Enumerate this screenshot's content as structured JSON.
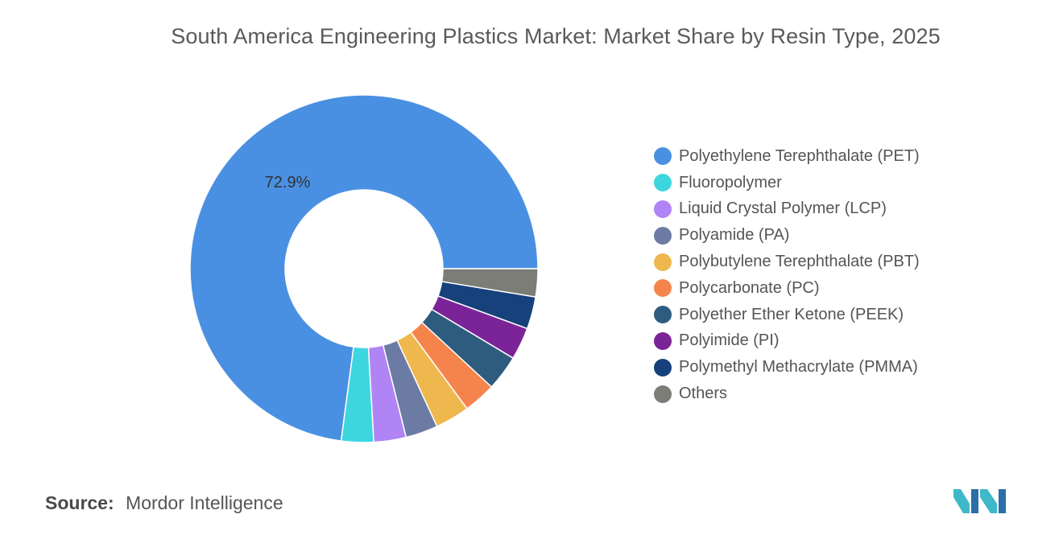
{
  "title": "South America Engineering Plastics Market: Market Share by Resin Type, 2025",
  "source": {
    "label": "Source:",
    "value": "Mordor Intelligence"
  },
  "chart_data": {
    "type": "pie",
    "variant": "donut",
    "title": "South America Engineering Plastics Market: Market Share by Resin Type, 2025",
    "legend_position": "right",
    "series": [
      {
        "name": "Polyethylene Terephthalate (PET)",
        "value": 72.9,
        "label": "72.9%",
        "color": "#4A90E2"
      },
      {
        "name": "Fluoropolymer",
        "value": 3.0,
        "color": "#3DD6DE"
      },
      {
        "name": "Liquid Crystal Polymer (LCP)",
        "value": 3.0,
        "color": "#B084F5"
      },
      {
        "name": "Polyamide (PA)",
        "value": 3.0,
        "color": "#6B7BA4"
      },
      {
        "name": "Polybutylene Terephthalate (PBT)",
        "value": 3.2,
        "color": "#EFB84E"
      },
      {
        "name": "Polycarbonate (PC)",
        "value": 3.0,
        "color": "#F5844C"
      },
      {
        "name": "Polyether Ether Ketone (PEEK)",
        "value": 3.3,
        "color": "#2E5C7E"
      },
      {
        "name": "Polyimide (PI)",
        "value": 3.0,
        "color": "#7B2497"
      },
      {
        "name": "Polymethyl Methacrylate (PMMA)",
        "value": 3.0,
        "color": "#17417A"
      },
      {
        "name": "Others",
        "value": 2.6,
        "color": "#7D7D78"
      }
    ]
  }
}
